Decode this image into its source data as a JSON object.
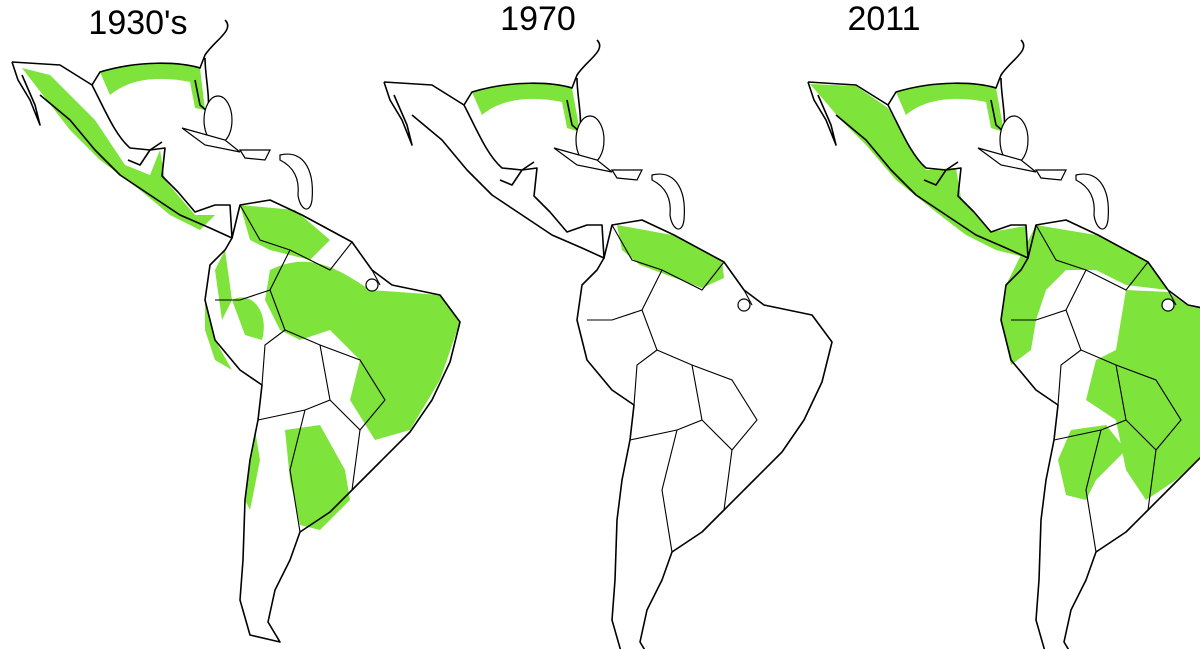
{
  "panels": [
    {
      "title": "1930's"
    },
    {
      "title": "1970"
    },
    {
      "title": "2011"
    }
  ]
}
